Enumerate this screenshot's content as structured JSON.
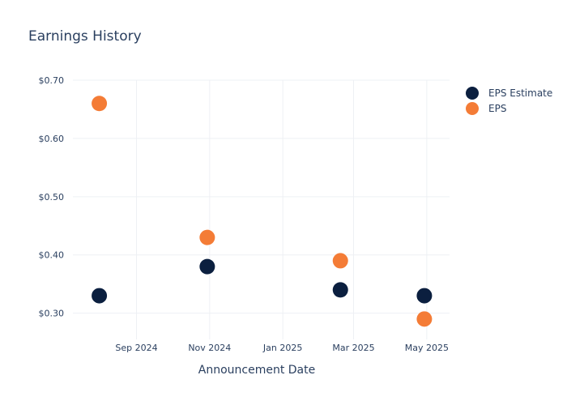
{
  "chart_data": {
    "type": "scatter",
    "title": "Earnings History",
    "xlabel": "Announcement Date",
    "ylabel": "",
    "x_ticks": [
      "2024-09-01",
      "2024-11-01",
      "2025-01-01",
      "2025-03-01",
      "2025-05-01"
    ],
    "x_tick_labels": [
      "Sep 2024",
      "Nov 2024",
      "Jan 2025",
      "Mar 2025",
      "May 2025"
    ],
    "y_ticks": [
      0.3,
      0.4,
      0.5,
      0.6,
      0.7
    ],
    "y_tick_labels": [
      "$0.30",
      "$0.40",
      "$0.50",
      "$0.60",
      "$0.70"
    ],
    "xlim": [
      "2024-07-10",
      "2025-05-20"
    ],
    "ylim": [
      0.255,
      0.7
    ],
    "grid": true,
    "legend": "top-right",
    "series": [
      {
        "name": "EPS Estimate",
        "color": "#0b1f3f",
        "points": [
          {
            "x": "2024-08-01",
            "y": 0.33
          },
          {
            "x": "2024-10-30",
            "y": 0.38
          },
          {
            "x": "2025-02-18",
            "y": 0.34
          },
          {
            "x": "2025-04-29",
            "y": 0.33
          }
        ]
      },
      {
        "name": "EPS",
        "color": "#f47c36",
        "points": [
          {
            "x": "2024-08-01",
            "y": 0.66
          },
          {
            "x": "2024-10-30",
            "y": 0.43
          },
          {
            "x": "2025-02-18",
            "y": 0.39
          },
          {
            "x": "2025-04-29",
            "y": 0.29
          }
        ]
      }
    ]
  }
}
